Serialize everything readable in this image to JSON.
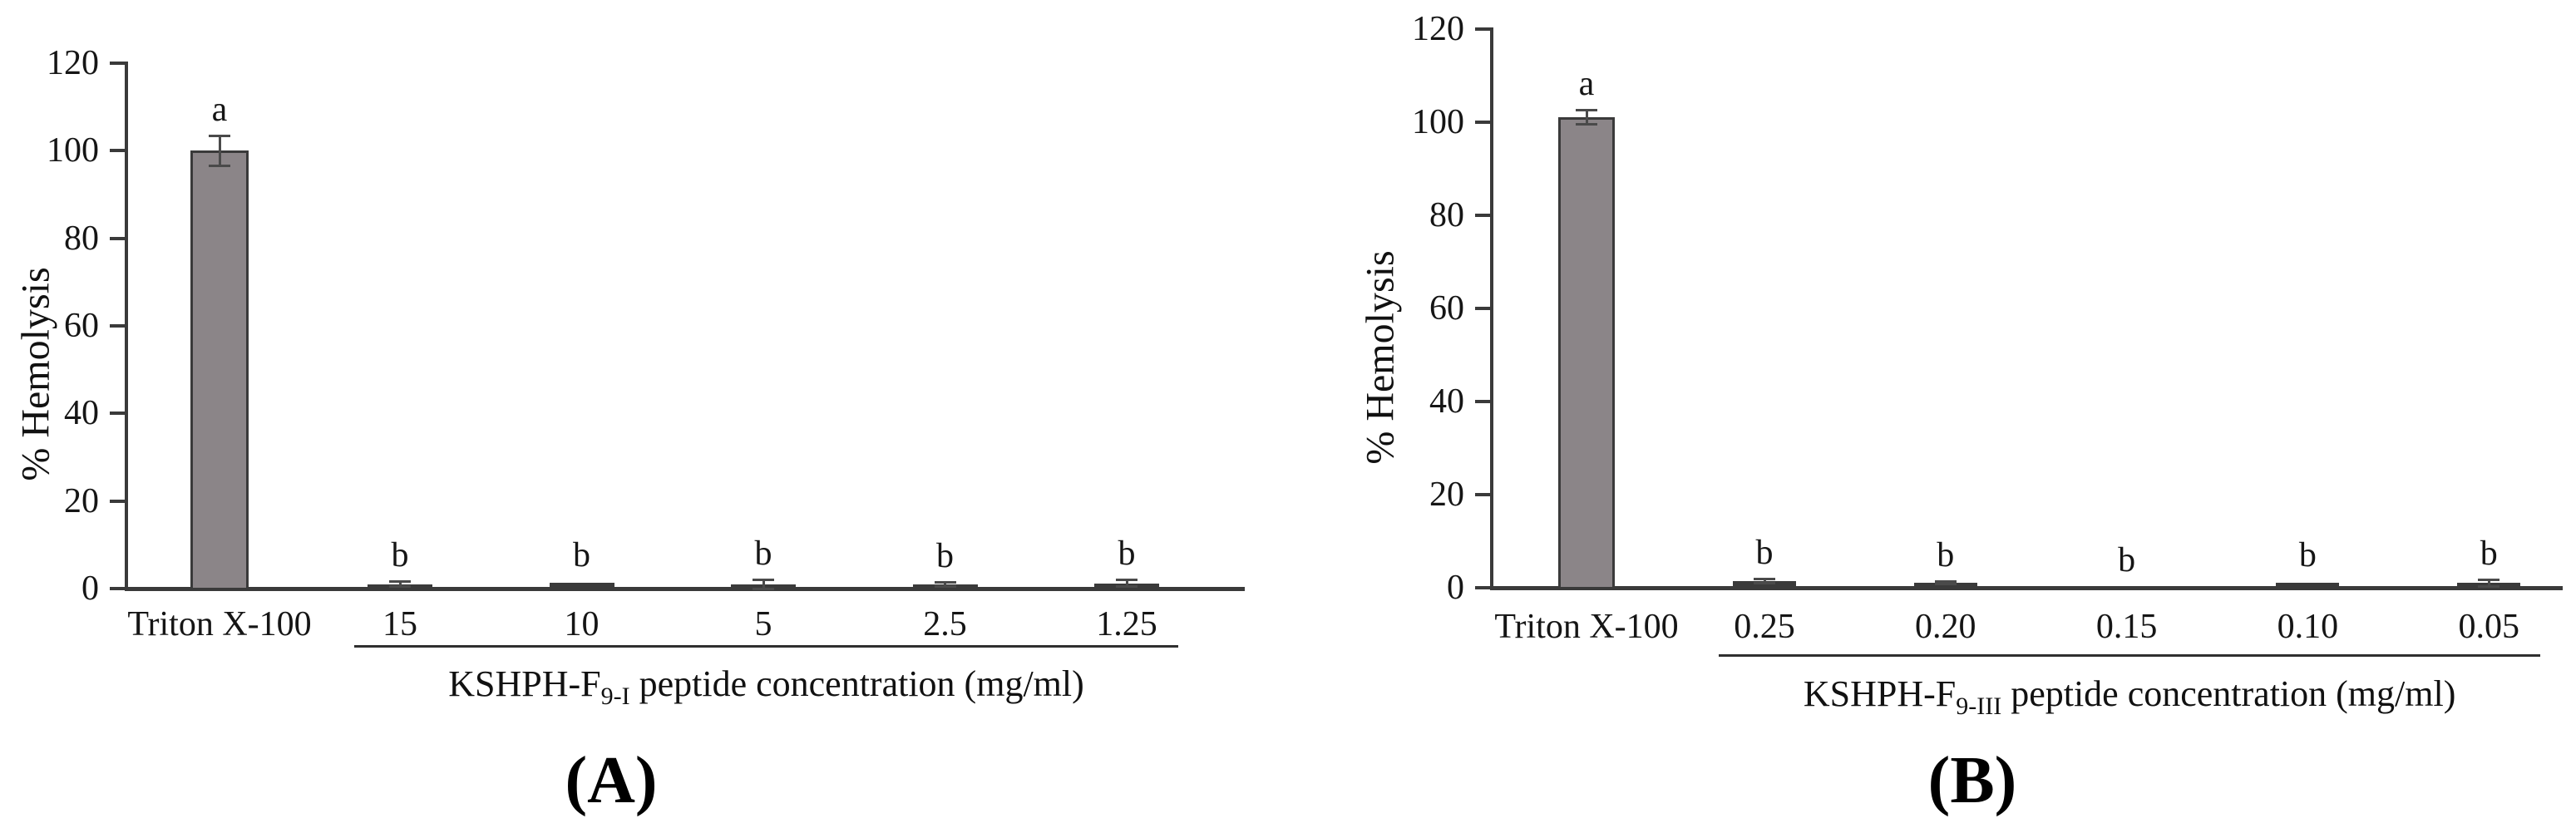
{
  "figure": {
    "panels": [
      {
        "id": "A",
        "panel_label": "(A)",
        "ylabel": "% Hemolysis",
        "xlabel_parts": {
          "prefix": "KSHPH-F",
          "subscript": "9-I",
          "suffix": " peptide concentration (mg/ml)"
        }
      },
      {
        "id": "B",
        "panel_label": "(B)",
        "ylabel": "% Hemolysis",
        "xlabel_parts": {
          "prefix": "KSHPH-F",
          "subscript": "9-III",
          "suffix": " peptide concentration (mg/ml)"
        }
      }
    ]
  },
  "chart_data": [
    {
      "type": "bar",
      "title": "",
      "ylabel": "% Hemolysis",
      "xlabel": "KSHPH-F9-I peptide concentration (mg/ml)",
      "ylim": [
        0,
        120
      ],
      "yticks": [
        0,
        20,
        40,
        60,
        80,
        100,
        120
      ],
      "grid": false,
      "legend": "none",
      "categories": [
        "Triton X-100",
        "15",
        "10",
        "5",
        "2.5",
        "1.25"
      ],
      "values": [
        100,
        1.0,
        1.3,
        0.8,
        0.9,
        1.2
      ],
      "errors": [
        3.5,
        0.7,
        0.3,
        1.2,
        0.5,
        0.9
      ],
      "sig_labels": [
        "a",
        "b",
        "b",
        "b",
        "b",
        "b"
      ],
      "bar_color": "#8b8588",
      "bar_edge_color": "#3a3a3a"
    },
    {
      "type": "bar",
      "title": "",
      "ylabel": "% Hemolysis",
      "xlabel": "KSHPH-F9-III peptide concentration (mg/ml)",
      "ylim": [
        0,
        120
      ],
      "yticks": [
        0,
        20,
        40,
        60,
        80,
        100,
        120
      ],
      "grid": false,
      "legend": "none",
      "categories": [
        "Triton X-100",
        "0.25",
        "0.20",
        "0.15",
        "0.10",
        "0.05"
      ],
      "values": [
        101,
        1.4,
        1.1,
        0.2,
        1.1,
        1.0
      ],
      "errors": [
        1.6,
        0.5,
        0.4,
        0.2,
        0.3,
        0.8
      ],
      "sig_labels": [
        "a",
        "b",
        "b",
        "b",
        "b",
        "b"
      ],
      "bar_color": "#8b8588",
      "bar_edge_color": "#3a3a3a"
    }
  ]
}
